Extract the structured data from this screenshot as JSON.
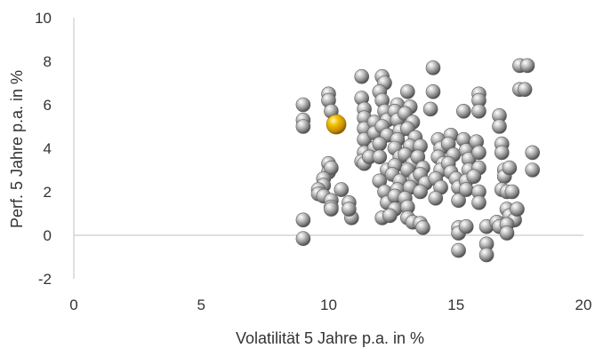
{
  "chart_data": {
    "type": "scatter",
    "title": "",
    "xlabel": "Volatilität 5 Jahre p.a. in %",
    "ylabel": "Perf. 5 Jahre p.a. in %",
    "xlim": [
      0,
      20
    ],
    "ylim": [
      -2,
      10
    ],
    "x_ticks": [
      "0",
      "5",
      "10",
      "15",
      "20"
    ],
    "y_ticks": [
      "-2",
      "0",
      "2",
      "4",
      "6",
      "8",
      "10"
    ],
    "grid": false,
    "legend": "none",
    "colors": {
      "default_point": "#8c8c8c",
      "highlight_point": "#e0a800",
      "axis": "#bfbfbf"
    },
    "series": [
      {
        "values": [
          [
            9.0,
            6.0
          ],
          [
            9.0,
            5.3
          ],
          [
            9.0,
            5.0
          ],
          [
            9.0,
            0.7
          ],
          [
            9.0,
            -0.15
          ],
          [
            10.0,
            6.5
          ],
          [
            10.0,
            6.2
          ],
          [
            10.1,
            5.7
          ],
          [
            10.0,
            3.3
          ],
          [
            10.0,
            2.9
          ],
          [
            10.1,
            3.1
          ],
          [
            9.8,
            2.6
          ],
          [
            9.8,
            2.3
          ],
          [
            9.6,
            2.1
          ],
          [
            9.6,
            1.9
          ],
          [
            9.8,
            1.8
          ],
          [
            10.1,
            1.6
          ],
          [
            10.1,
            1.3
          ],
          [
            10.1,
            1.2
          ],
          [
            10.5,
            2.1
          ],
          [
            10.8,
            1.5
          ],
          [
            10.9,
            0.8
          ],
          [
            10.8,
            1.2
          ],
          [
            11.3,
            7.3
          ],
          [
            11.3,
            6.3
          ],
          [
            11.4,
            5.8
          ],
          [
            11.4,
            5.4
          ],
          [
            11.4,
            4.9
          ],
          [
            11.4,
            4.4
          ],
          [
            11.4,
            3.8
          ],
          [
            11.3,
            3.4
          ],
          [
            11.4,
            3.3
          ],
          [
            11.8,
            5.2
          ],
          [
            11.8,
            4.7
          ],
          [
            11.8,
            4.0
          ],
          [
            11.6,
            3.6
          ],
          [
            12.1,
            7.3
          ],
          [
            12.2,
            7.0
          ],
          [
            12.0,
            6.6
          ],
          [
            12.1,
            6.2
          ],
          [
            12.2,
            5.7
          ],
          [
            12.3,
            5.3
          ],
          [
            12.1,
            5.0
          ],
          [
            12.3,
            4.6
          ],
          [
            12.0,
            4.2
          ],
          [
            12.0,
            3.6
          ],
          [
            12.3,
            3.0
          ],
          [
            12.0,
            2.5
          ],
          [
            12.2,
            2.0
          ],
          [
            12.3,
            1.5
          ],
          [
            12.1,
            0.8
          ],
          [
            12.7,
            6.0
          ],
          [
            12.6,
            5.7
          ],
          [
            12.7,
            5.3
          ],
          [
            12.8,
            4.8
          ],
          [
            12.7,
            4.4
          ],
          [
            12.6,
            4.0
          ],
          [
            12.8,
            3.6
          ],
          [
            12.6,
            3.2
          ],
          [
            12.5,
            2.8
          ],
          [
            12.8,
            2.5
          ],
          [
            12.7,
            2.1
          ],
          [
            12.6,
            1.8
          ],
          [
            12.6,
            1.2
          ],
          [
            12.4,
            0.9
          ],
          [
            13.1,
            6.6
          ],
          [
            13.2,
            5.9
          ],
          [
            13.0,
            5.6
          ],
          [
            13.3,
            5.2
          ],
          [
            13.1,
            4.9
          ],
          [
            13.4,
            4.5
          ],
          [
            13.2,
            4.1
          ],
          [
            13.0,
            3.7
          ],
          [
            13.3,
            3.3
          ],
          [
            13.1,
            3.0
          ],
          [
            13.4,
            2.6
          ],
          [
            13.2,
            2.2
          ],
          [
            13.0,
            1.7
          ],
          [
            13.1,
            1.3
          ],
          [
            13.1,
            0.8
          ],
          [
            13.3,
            0.6
          ],
          [
            13.6,
            4.1
          ],
          [
            13.5,
            3.6
          ],
          [
            13.7,
            3.1
          ],
          [
            13.6,
            2.8
          ],
          [
            13.8,
            2.4
          ],
          [
            13.6,
            2.0
          ],
          [
            13.6,
            0.55
          ],
          [
            13.7,
            0.35
          ],
          [
            14.1,
            7.7
          ],
          [
            14.1,
            6.6
          ],
          [
            14.0,
            5.8
          ],
          [
            14.3,
            4.4
          ],
          [
            14.4,
            4.0
          ],
          [
            14.3,
            3.6
          ],
          [
            14.5,
            3.3
          ],
          [
            14.4,
            3.0
          ],
          [
            14.2,
            2.6
          ],
          [
            14.4,
            2.2
          ],
          [
            14.2,
            1.7
          ],
          [
            14.8,
            4.6
          ],
          [
            14.7,
            4.2
          ],
          [
            14.9,
            3.7
          ],
          [
            14.7,
            3.3
          ],
          [
            14.8,
            2.9
          ],
          [
            15.0,
            2.6
          ],
          [
            15.1,
            2.2
          ],
          [
            15.1,
            1.6
          ],
          [
            15.1,
            0.35
          ],
          [
            15.1,
            0.1
          ],
          [
            15.1,
            -0.7
          ],
          [
            15.3,
            5.7
          ],
          [
            15.3,
            4.4
          ],
          [
            15.4,
            3.9
          ],
          [
            15.5,
            3.5
          ],
          [
            15.5,
            3.0
          ],
          [
            15.4,
            2.5
          ],
          [
            15.4,
            2.1
          ],
          [
            15.4,
            0.4
          ],
          [
            15.9,
            6.5
          ],
          [
            15.9,
            6.2
          ],
          [
            15.9,
            5.7
          ],
          [
            15.8,
            4.3
          ],
          [
            15.9,
            3.8
          ],
          [
            15.9,
            3.1
          ],
          [
            15.7,
            2.7
          ],
          [
            15.9,
            2.0
          ],
          [
            15.9,
            1.5
          ],
          [
            16.2,
            0.4
          ],
          [
            16.2,
            -0.4
          ],
          [
            16.2,
            -0.9
          ],
          [
            16.6,
            0.6
          ],
          [
            16.7,
            0.4
          ],
          [
            16.7,
            5.5
          ],
          [
            16.7,
            5.0
          ],
          [
            16.8,
            4.2
          ],
          [
            16.8,
            3.8
          ],
          [
            16.9,
            3.0
          ],
          [
            16.9,
            2.7
          ],
          [
            16.8,
            2.1
          ],
          [
            17.0,
            2.0
          ],
          [
            17.2,
            2.0
          ],
          [
            17.1,
            3.1
          ],
          [
            17.0,
            1.2
          ],
          [
            17.1,
            0.9
          ],
          [
            17.3,
            0.7
          ],
          [
            17.4,
            1.2
          ],
          [
            17.0,
            0.5
          ],
          [
            17.0,
            0.1
          ],
          [
            17.5,
            7.8
          ],
          [
            17.8,
            7.8
          ],
          [
            17.5,
            6.7
          ],
          [
            17.7,
            6.7
          ],
          [
            18.0,
            3.8
          ],
          [
            18.0,
            3.0
          ]
        ]
      },
      {
        "values": [
          [
            10.3,
            5.1
          ]
        ]
      }
    ]
  }
}
